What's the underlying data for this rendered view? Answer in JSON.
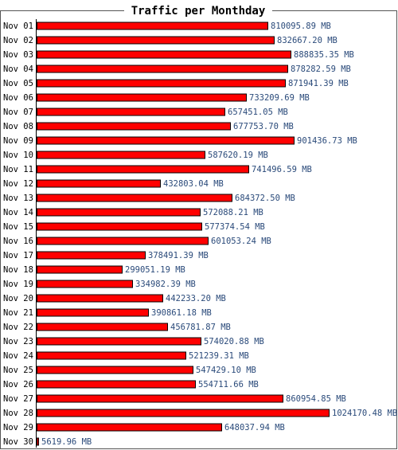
{
  "chart_data": {
    "type": "bar",
    "orientation": "horizontal",
    "title": "Traffic per Monthday",
    "unit": "MB",
    "grid": false,
    "legend": "none",
    "bar_color": "#ff0000",
    "value_label_color": "#2a4a7a",
    "categories": [
      "Nov 01",
      "Nov 02",
      "Nov 03",
      "Nov 04",
      "Nov 05",
      "Nov 06",
      "Nov 07",
      "Nov 08",
      "Nov 09",
      "Nov 10",
      "Nov 11",
      "Nov 12",
      "Nov 13",
      "Nov 14",
      "Nov 15",
      "Nov 16",
      "Nov 17",
      "Nov 18",
      "Nov 19",
      "Nov 20",
      "Nov 21",
      "Nov 22",
      "Nov 23",
      "Nov 24",
      "Nov 25",
      "Nov 26",
      "Nov 27",
      "Nov 28",
      "Nov 29",
      "Nov 30"
    ],
    "values": [
      810095.89,
      832667.2,
      888835.35,
      878282.59,
      871941.39,
      733209.69,
      657451.05,
      677753.7,
      901436.73,
      587620.19,
      741496.59,
      432803.04,
      684372.5,
      572088.21,
      577374.54,
      601053.24,
      378491.39,
      299051.19,
      334982.39,
      442233.2,
      390861.18,
      456781.87,
      574020.88,
      521239.31,
      547429.1,
      554711.66,
      860954.85,
      1024170.48,
      648037.94,
      5619.96
    ],
    "value_labels": [
      "810095.89 MB",
      "832667.20 MB",
      "888835.35 MB",
      "878282.59 MB",
      "871941.39 MB",
      "733209.69 MB",
      "657451.05 MB",
      "677753.70 MB",
      "901436.73 MB",
      "587620.19 MB",
      "741496.59 MB",
      "432803.04 MB",
      "684372.50 MB",
      "572088.21 MB",
      "577374.54 MB",
      "601053.24 MB",
      "378491.39 MB",
      "299051.19 MB",
      "334982.39 MB",
      "442233.20 MB",
      "390861.18 MB",
      "456781.87 MB",
      "574020.88 MB",
      "521239.31 MB",
      "547429.10 MB",
      "554711.66 MB",
      "860954.85 MB",
      "1024170.48 MB",
      "648037.94 MB",
      "5619.96 MB"
    ]
  }
}
